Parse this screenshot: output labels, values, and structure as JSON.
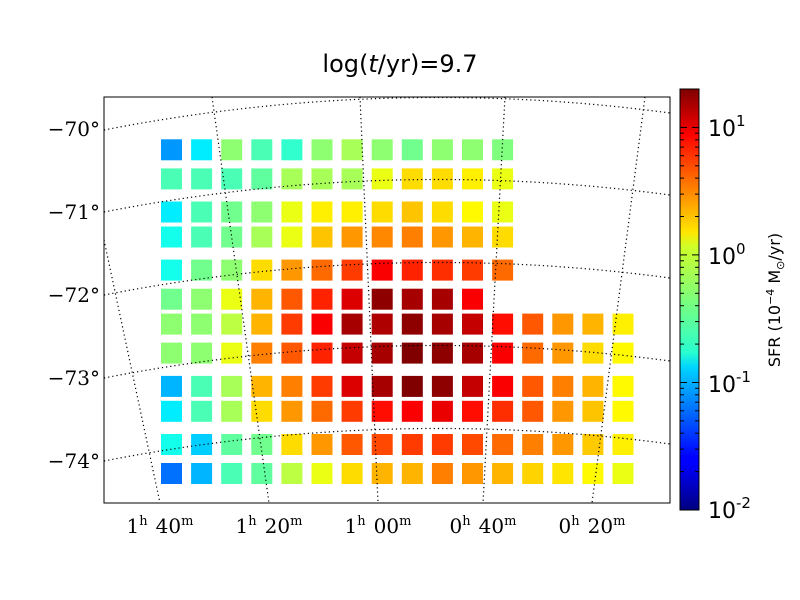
{
  "chart_data": {
    "type": "heatmap",
    "title": "log(t/yr)=9.7",
    "title_parts": [
      "log(",
      "t",
      "/yr)=9.7"
    ],
    "dec_ticks": [
      {
        "label": "−70°",
        "value": -70
      },
      {
        "label": "−71°",
        "value": -71
      },
      {
        "label": "−72°",
        "value": -72
      },
      {
        "label": "−73°",
        "value": -73
      },
      {
        "label": "−74°",
        "value": -74
      }
    ],
    "ra_ticks": [
      {
        "h": "1",
        "m": "40",
        "value": "1h40m"
      },
      {
        "h": "1",
        "m": "20",
        "value": "1h20m"
      },
      {
        "h": "1",
        "m": "00",
        "value": "1h00m"
      },
      {
        "h": "0",
        "m": "40",
        "value": "0h40m"
      },
      {
        "h": "0",
        "m": "20",
        "value": "0h20m"
      }
    ],
    "grid": true,
    "colorbar": {
      "label": "SFR (10⁻⁴ M⊙/yr)",
      "label_parts": [
        "SFR (10",
        "−4",
        " M",
        "⊙",
        "/yr)"
      ],
      "scale": "log",
      "range": [
        0.01,
        20
      ],
      "ticks": [
        {
          "base": "10",
          "exp": "1",
          "value": 10
        },
        {
          "base": "10",
          "exp": "0",
          "value": 1
        },
        {
          "base": "10",
          "exp": "-1",
          "value": 0.1
        },
        {
          "base": "10",
          "exp": "-2",
          "value": 0.01
        }
      ],
      "colormap": "jet"
    },
    "rows": [
      {
        "dec": -70.1,
        "values": [
          0.08,
          0.15,
          0.5,
          0.3,
          0.25,
          0.5,
          0.6,
          0.5,
          0.4,
          0.5,
          0.5,
          0.45
        ]
      },
      {
        "dec": -70.45,
        "values": [
          0.3,
          0.3,
          0.3,
          0.35,
          0.6,
          0.6,
          0.6,
          1.0,
          1.5,
          1.5,
          1.3,
          1.0
        ]
      },
      {
        "dec": -70.85,
        "values": [
          0.15,
          0.3,
          0.4,
          0.5,
          1.0,
          1.3,
          1.3,
          1.5,
          1.8,
          1.5,
          1.2,
          1.0
        ]
      },
      {
        "dec": -71.15,
        "values": [
          0.2,
          0.3,
          0.4,
          0.6,
          1.0,
          1.8,
          2.5,
          2.8,
          3.0,
          2.5,
          2.0,
          1.5
        ]
      },
      {
        "dec": -71.55,
        "values": [
          0.2,
          0.4,
          0.5,
          1.5,
          2.5,
          3.5,
          5.0,
          8.0,
          6.0,
          5.5,
          5.0,
          3.5
        ]
      },
      {
        "dec": -71.9,
        "values": [
          0.4,
          0.5,
          1.0,
          2.0,
          4.0,
          6.0,
          10.0,
          18.0,
          15.0,
          15.0,
          8.0
        ]
      },
      {
        "dec": -72.2,
        "values": [
          0.5,
          0.5,
          0.7,
          2.0,
          5.0,
          8.0,
          15.0,
          14.0,
          18.0,
          15.0,
          12.0,
          7.0,
          4.0,
          2.5,
          2.0,
          1.3
        ]
      },
      {
        "dec": -72.55,
        "values": [
          0.5,
          0.5,
          1.0,
          3.0,
          4.0,
          6.0,
          12.0,
          15.0,
          20.0,
          18.0,
          15.0,
          8.0,
          3.5,
          2.5,
          1.5,
          1.2
        ]
      },
      {
        "dec": -72.95,
        "values": [
          0.1,
          0.3,
          0.6,
          2.0,
          3.0,
          5.0,
          10.0,
          15.0,
          20.0,
          18.0,
          12.0,
          8.0,
          4.0,
          3.0,
          2.0,
          1.2
        ]
      },
      {
        "dec": -73.25,
        "values": [
          0.15,
          0.3,
          0.6,
          1.5,
          2.5,
          3.5,
          5.0,
          7.0,
          8.0,
          9.0,
          7.0,
          5.5,
          4.0,
          2.5,
          1.8,
          1.2
        ]
      },
      {
        "dec": -73.65,
        "values": [
          0.2,
          0.12,
          0.35,
          0.4,
          1.5,
          2.5,
          4.0,
          4.5,
          5.0,
          5.0,
          4.5,
          3.5,
          3.0,
          2.5,
          1.7,
          1.3
        ]
      },
      {
        "dec": -74.0,
        "values": [
          0.06,
          0.1,
          0.3,
          0.35,
          0.7,
          1.0,
          1.5,
          2.0,
          2.0,
          3.0,
          2.5,
          2.0,
          1.6,
          1.4,
          1.2,
          1.0
        ]
      }
    ]
  }
}
